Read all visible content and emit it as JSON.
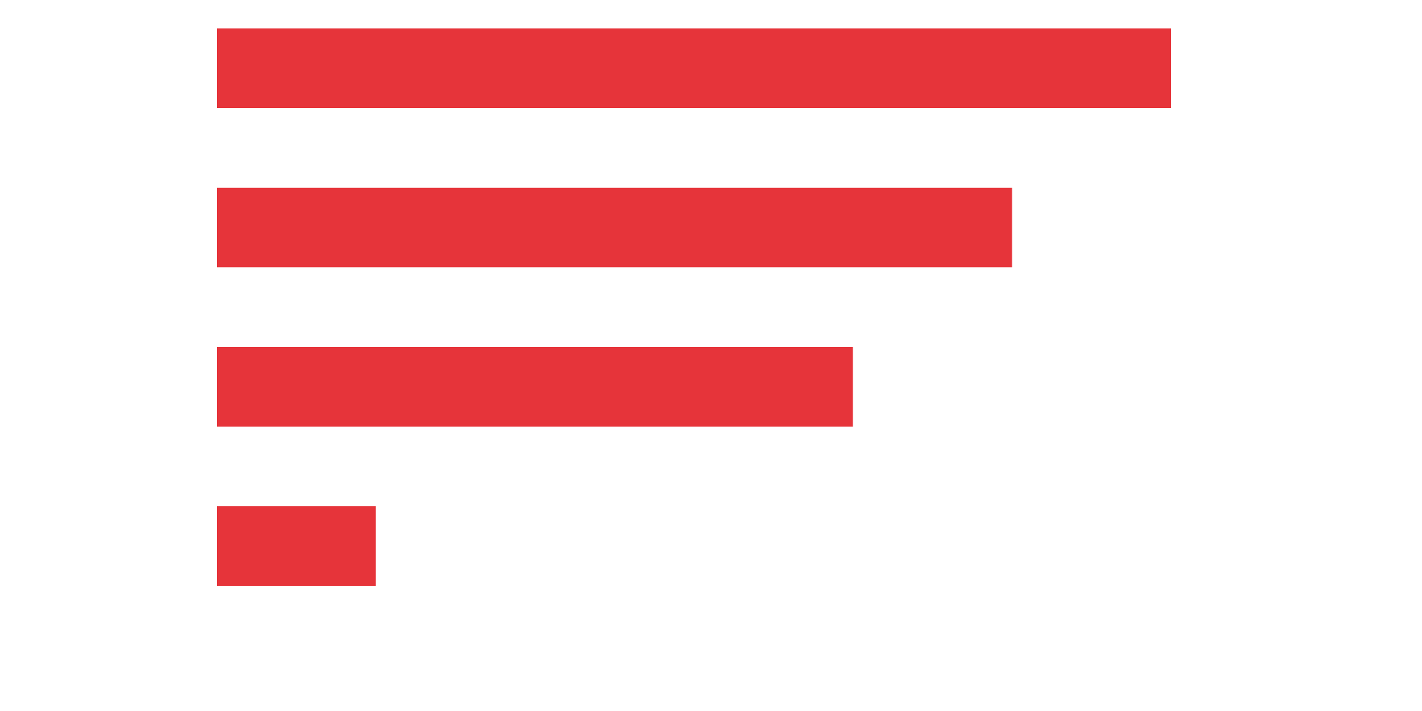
{
  "chart_data": {
    "type": "bar",
    "orientation": "horizontal",
    "categories": [
      "",
      "",
      "",
      ""
    ],
    "values": [
      6,
      5,
      4,
      1
    ],
    "xlim": [
      0,
      6
    ],
    "title": "",
    "xlabel": "",
    "ylabel": "",
    "grid": false,
    "legend": "none",
    "bar_color": "#E6343A"
  }
}
